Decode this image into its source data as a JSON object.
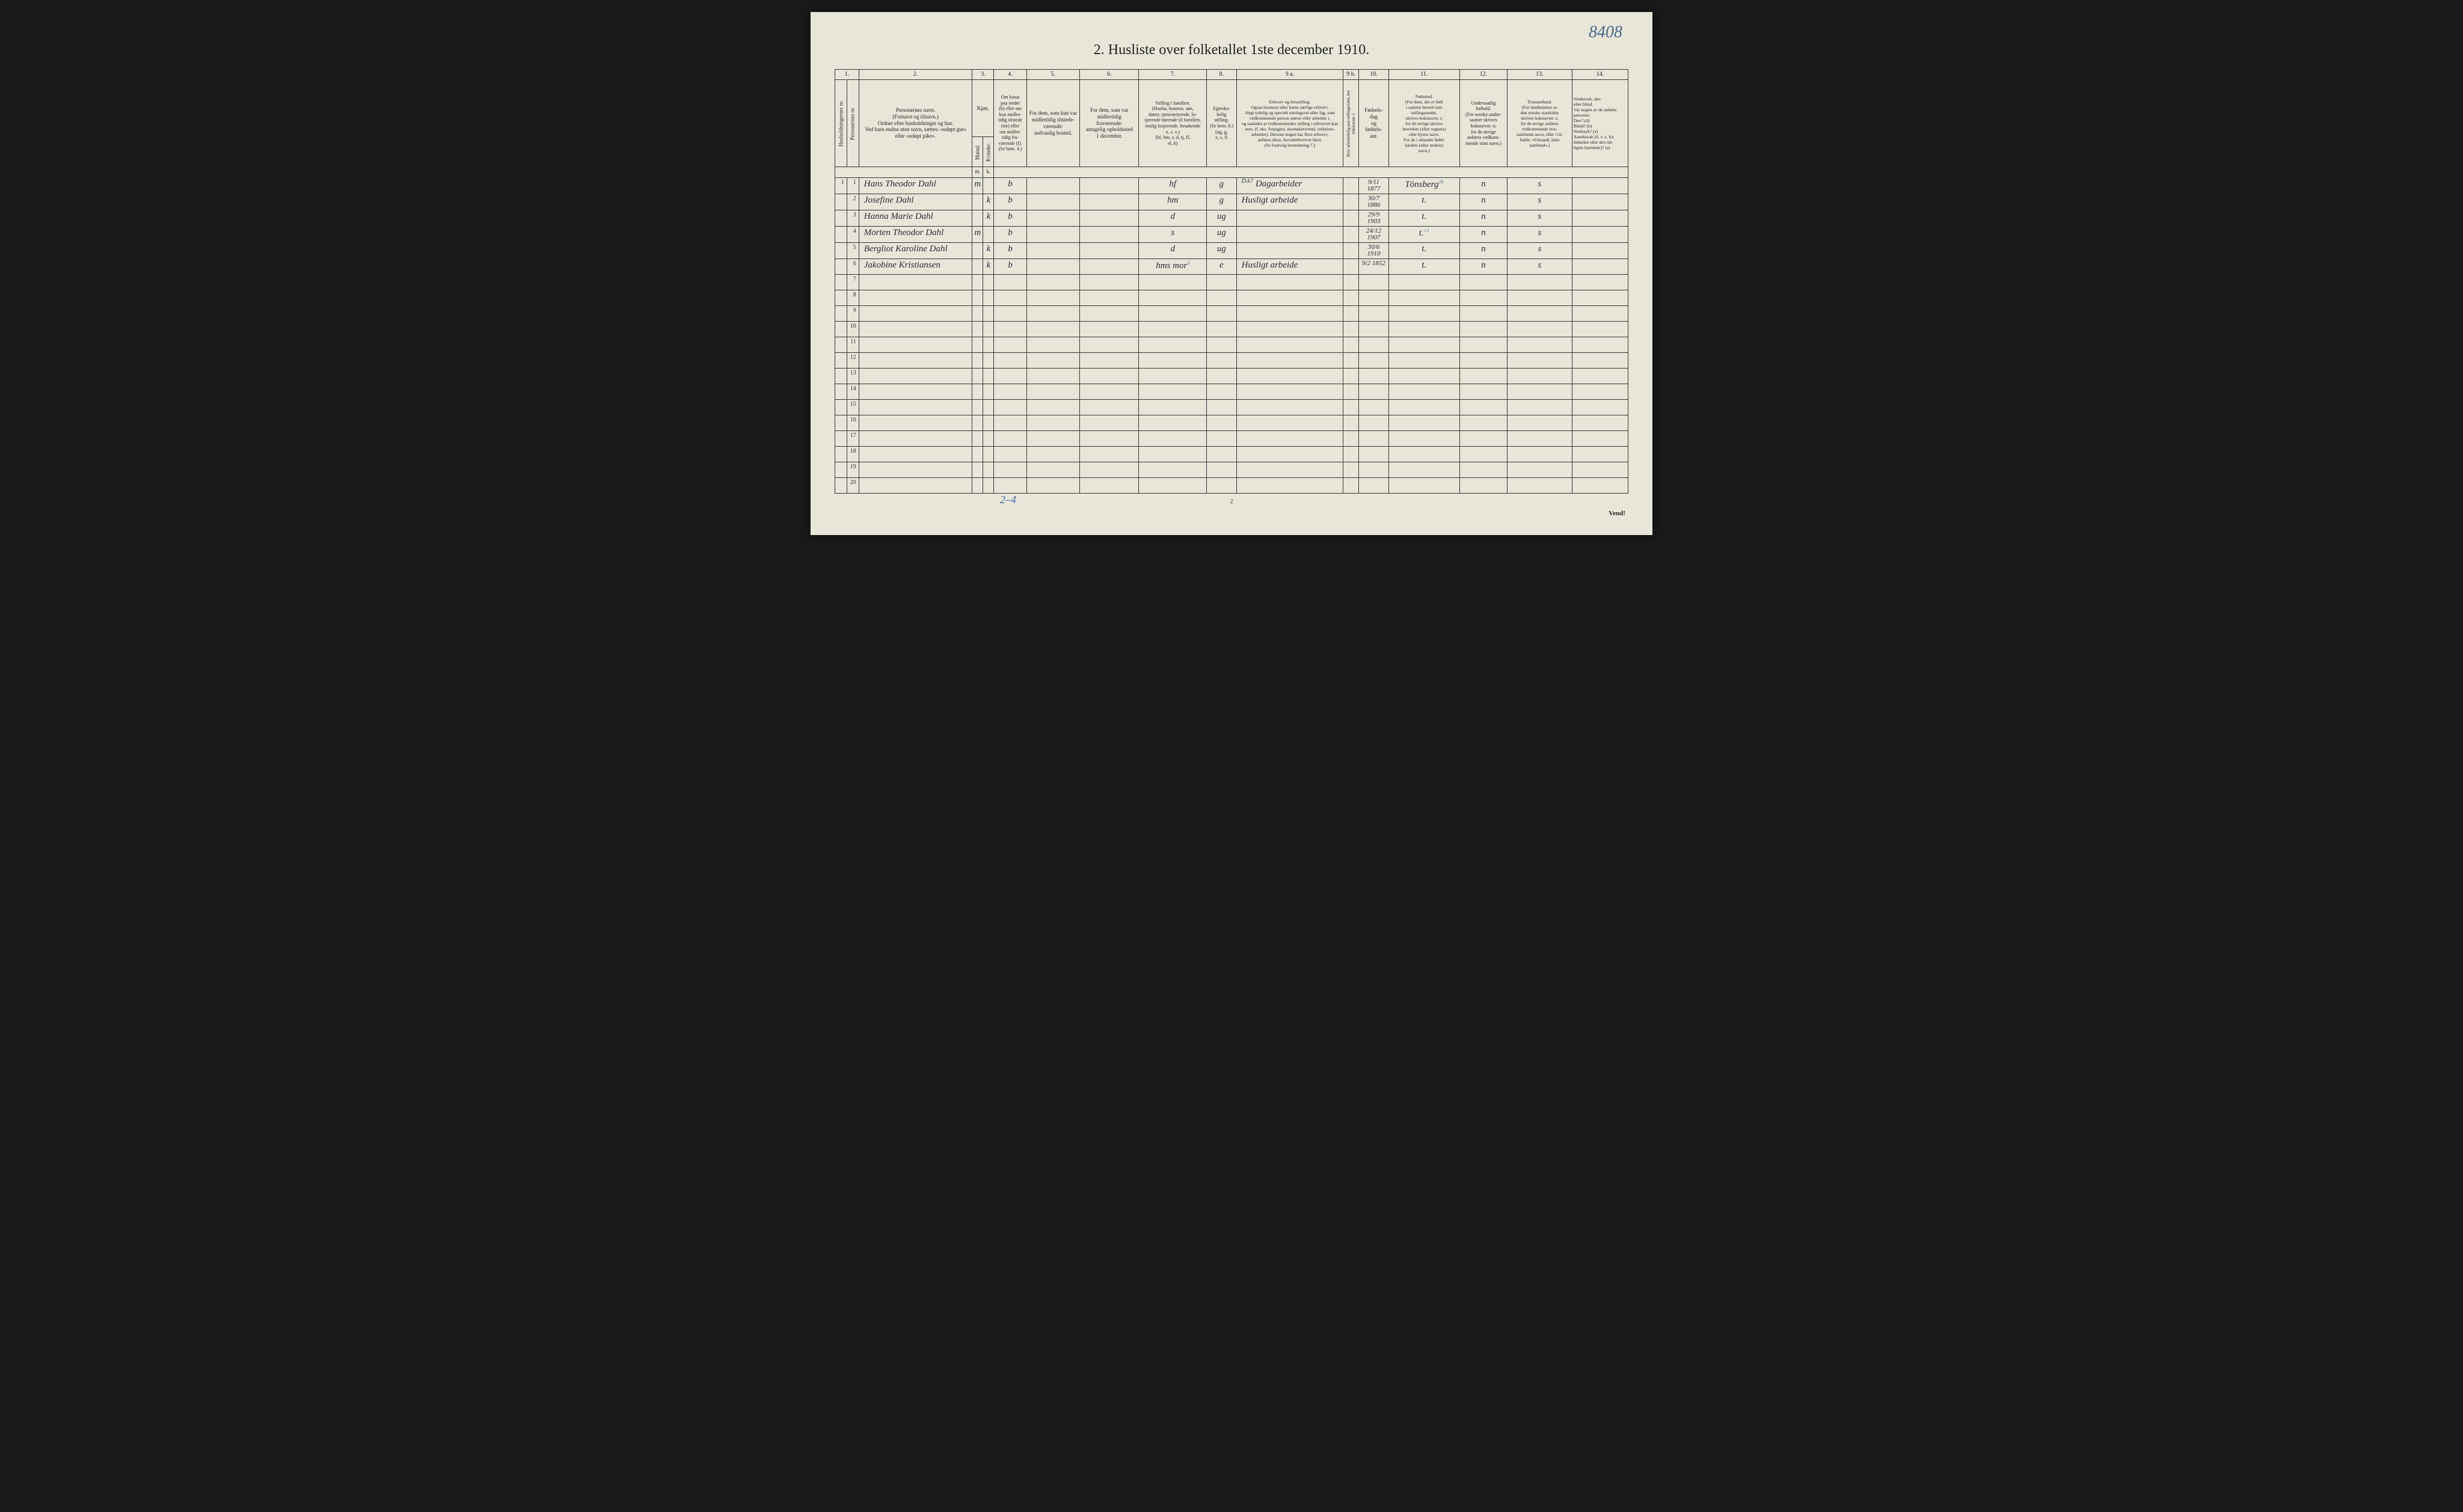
{
  "page_number_hand": "8408",
  "title": "2.  Husliste over folketallet 1ste december 1910.",
  "footer_page": "2",
  "vend": "Vend!",
  "annotation_bottom": "2–4",
  "col_nums": [
    "1.",
    "2.",
    "3.",
    "4.",
    "5.",
    "6.",
    "7.",
    "8.",
    "9 a.",
    "9 b.",
    "10.",
    "11.",
    "12.",
    "13.",
    "14."
  ],
  "headers": {
    "h1": "Husholdningernes nr.",
    "h2": "Personernes nr.",
    "h3": "Personernes navn.\n(Fornavn og tilnavn.)\nOrdnet efter husholdninger og hus.\nVed barn endnu uten navn, sættes: «udøpt gut»\neller «udøpt pike».",
    "h4": "Kjøn.",
    "h5": "Om bosat\npaa stedet\n(b) eller om\nkun midler-\ntidig tilstede\n(mt) eller\nom midler-\ntidig fra-\nværende (f).\n(Se bem. 4.)",
    "h6": "For dem, som kun var\nmidlertidig tilstede-\nværende:\nsedvanlig bosted.",
    "h7": "For dem, som var\nmidlertidig\nfraværende:\nantagelig opholdssted\n1 december.",
    "h8": "Stilling i familien.\n(Husfar, husmor, søn,\ndatter, tjenestetyende, lo-\nsjerende hørende til familien,\nenslig losjerende, besøkende\no. s. v.)\n(hf, hm, s, d, tj, fl,\nel, b)",
    "h9": "Egteska-\nbelig\nstilling.\n(Se bem. 6.)\n(ug, g,\ne, s, f)",
    "h10": "Erhverv og livsstilling.\nOgsaa husmors eller barns særlige erhverv.\nAngi tydelig og specielt næringsvei eller fag, som\nvedkommende person utøver eller arbeider i,\nog saaledes at vedkommendes stilling i erhvervet kan\nsees, (f. eks. forpagter, skomakersvend, cellulose-\narbeider). Dersom nogen har flere erhverv,\nanføres disse, hovederhvervet først.\n(Se forøvrig bemerkning 7.)",
    "h11": "Hvis arbeidsledig\npaa tællingstiden,\nher bokstaven: l.",
    "h12": "Fødsels-\ndag\nog\nfødsels-\naar.",
    "h13": "Fødested.\n(For dem, der er født\ni samme herred som\ntællingsstedet,\nskrives bokstaven: t;\nfor de øvrige skrives\nherredets (eller sognets)\neller byens navn.\nFor de i utlandet fødte:\nlandets (eller stedets)\nnavn.)",
    "h14": "Undersaatlig\nforhold.\n(For norske under-\nsaatter skrives\nbokstaven: n;\nfor de øvrige\nanføres vedkom-\nmende stats navn.)",
    "h15": "Trossamfund.\n(For medlemmer av\nden norske statskirke\nskrives bokstaven: s;\nfor de øvrige anføres\nvedkommende tros-\nsamfunds navn, eller i til-\nfælde: «Uttraadt, intet\nsamfund».)",
    "h16": "Sindssvak, døv\neller blind.\nVar nogen av de anførte\npersoner:\nDøv?        (d)\nBlind?       (b)\nSindssyk?  (s)\nAandssvak (d. v. s. fra\nfødselen eller den tid-\nligste barndom)?  (a)",
    "sub_m": "Mænd.",
    "sub_k": "Kvinder.",
    "sub_mk": "m.",
    "sub_kk": "k."
  },
  "rows": [
    {
      "hh": "1",
      "pn": "1",
      "name": "Hans Theodor Dahl",
      "m": "m",
      "k": "",
      "res": "b",
      "c6": "",
      "c7": "",
      "fam": "hf",
      "mar": "g",
      "occ": "Dagarbeider",
      "wl": "",
      "dob": "9/11 1877",
      "birthplace": "Tönsberg",
      "nat": "n",
      "rel": "s",
      "dis": "",
      "sup": "26",
      "occ_above": "D.k?"
    },
    {
      "hh": "",
      "pn": "2",
      "name": "Josefine Dahl",
      "m": "",
      "k": "k",
      "res": "b",
      "c6": "",
      "c7": "",
      "fam": "hm",
      "mar": "g",
      "occ": "Husligt arbeide",
      "wl": "",
      "dob": "30/7 1886",
      "birthplace": "t.",
      "nat": "n",
      "rel": "s",
      "dis": "",
      "sup": "",
      "occ_above": ""
    },
    {
      "hh": "",
      "pn": "3",
      "name": "Hanna Marie Dahl",
      "m": "",
      "k": "k",
      "res": "b",
      "c6": "",
      "c7": "",
      "fam": "d",
      "mar": "ug",
      "occ": "",
      "wl": "",
      "dob": "29/9 1903",
      "birthplace": "t.",
      "nat": "n",
      "rel": "s",
      "dis": "",
      "sup": "",
      "occ_above": ""
    },
    {
      "hh": "",
      "pn": "4",
      "name": "Morten Theodor Dahl",
      "m": "m",
      "k": "",
      "res": "b",
      "c6": "",
      "c7": "",
      "fam": "s",
      "mar": "ug",
      "occ": "",
      "wl": "",
      "dob": "24/12 1907",
      "birthplace": "t.",
      "nat": "n",
      "rel": "s",
      "dis": "",
      "sup": "+1",
      "occ_above": ""
    },
    {
      "hh": "",
      "pn": "5",
      "name": "Bergliot Karoline Dahl",
      "m": "",
      "k": "k",
      "res": "b",
      "c6": "",
      "c7": "",
      "fam": "d",
      "mar": "ug",
      "occ": "",
      "wl": "",
      "dob": "30/6 1910",
      "birthplace": "t.",
      "nat": "n",
      "rel": "s",
      "dis": "",
      "sup": "",
      "occ_above": ""
    },
    {
      "hh": "",
      "pn": "6",
      "name": "Jakobine Kristiansen",
      "m": "",
      "k": "k",
      "res": "b",
      "c6": "",
      "c7": "",
      "fam": "hms mor",
      "mar": "e",
      "occ": "Husligt arbeide",
      "wl": "",
      "dob": "9/2 1852",
      "birthplace": "t.",
      "nat": "n",
      "rel": "s",
      "dis": "",
      "sup": "3",
      "occ_above": ""
    }
  ],
  "empty_rows": [
    7,
    8,
    9,
    10,
    11,
    12,
    13,
    14,
    15,
    16,
    17,
    18,
    19,
    20
  ]
}
